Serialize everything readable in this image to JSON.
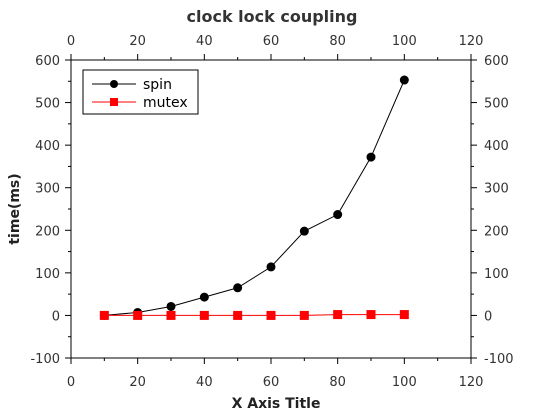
{
  "chart_data": {
    "type": "line",
    "title": "clock lock coupling",
    "xlabel": "X Axis Title",
    "ylabel": "time(ms)",
    "xlim": [
      0,
      120
    ],
    "ylim": [
      -100,
      600
    ],
    "xticks": [
      0,
      20,
      40,
      60,
      80,
      100,
      120
    ],
    "yticks": [
      -100,
      0,
      100,
      200,
      300,
      400,
      500,
      600
    ],
    "grid": false,
    "legend_position": "top-left",
    "series": [
      {
        "name": "spin",
        "color": "#000000",
        "marker": "circle",
        "x": [
          10,
          20,
          30,
          40,
          50,
          60,
          70,
          80,
          90,
          100
        ],
        "y": [
          0,
          7,
          21,
          43,
          65,
          114,
          198,
          237,
          372,
          553
        ]
      },
      {
        "name": "mutex",
        "color": "#ff0000",
        "marker": "square",
        "x": [
          10,
          20,
          30,
          40,
          50,
          60,
          70,
          80,
          90,
          100
        ],
        "y": [
          0,
          0,
          0,
          0,
          0,
          0,
          0,
          2,
          2,
          2
        ]
      }
    ]
  }
}
